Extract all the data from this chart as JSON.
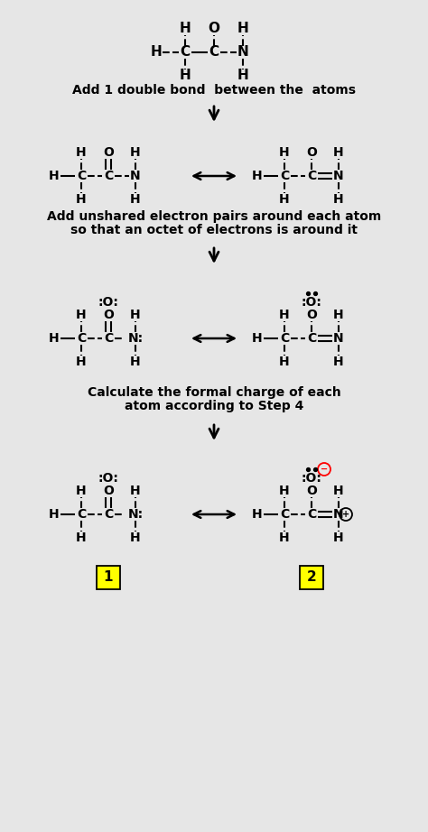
{
  "bg_color": "#e6e6e6",
  "text_color": "#000000",
  "section1_label": "Add 1 double bond  between the  atoms",
  "section2_label_1": "Add unshared electron pairs around each atom",
  "section2_label_2": "so that an octet of electrons is around it",
  "section3_label_1": "Calculate the formal charge of each",
  "section3_label_2": "atom according to Step 4"
}
